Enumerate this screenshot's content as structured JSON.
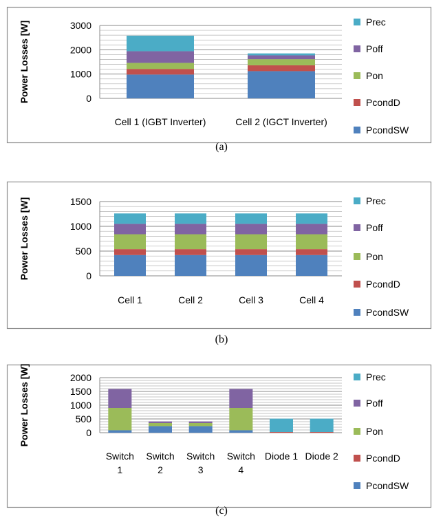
{
  "legend": [
    {
      "name": "Prec",
      "color": "#4BACC6"
    },
    {
      "name": "Poff",
      "color": "#8064A2"
    },
    {
      "name": "Pon",
      "color": "#9BBB59"
    },
    {
      "name": "PcondD",
      "color": "#C0504D"
    },
    {
      "name": "PcondSW",
      "color": "#4F81BD"
    }
  ],
  "chart_data": [
    {
      "type": "bar",
      "stacked": true,
      "caption": "(a)",
      "ylabel": "Power Losses [W]",
      "ylim": [
        0,
        3000
      ],
      "yticks": [
        0,
        1000,
        2000,
        3000
      ],
      "minor_step": 200,
      "categories": [
        [
          "Cell 1 (IGBT Inverter)"
        ],
        [
          "Cell 2 (IGCT Inverter)"
        ]
      ],
      "series": [
        {
          "name": "PcondSW",
          "values": [
            980,
            1120
          ]
        },
        {
          "name": "PcondD",
          "values": [
            230,
            240
          ]
        },
        {
          "name": "Pon",
          "values": [
            250,
            250
          ]
        },
        {
          "name": "Poff",
          "values": [
            480,
            160
          ]
        },
        {
          "name": "Prec",
          "values": [
            640,
            80
          ]
        }
      ],
      "legend_position": "right",
      "grid": true
    },
    {
      "type": "bar",
      "stacked": true,
      "caption": "(b)",
      "ylabel": "Power Losses [W]",
      "ylim": [
        0,
        1500
      ],
      "yticks": [
        0,
        500,
        1000,
        1500
      ],
      "minor_step": 100,
      "categories": [
        [
          "Cell 1"
        ],
        [
          "Cell 2"
        ],
        [
          "Cell 3"
        ],
        [
          "Cell 4"
        ]
      ],
      "series": [
        {
          "name": "PcondSW",
          "values": [
            420,
            420,
            420,
            420
          ]
        },
        {
          "name": "PcondD",
          "values": [
            120,
            120,
            120,
            120
          ]
        },
        {
          "name": "Pon",
          "values": [
            300,
            300,
            300,
            300
          ]
        },
        {
          "name": "Poff",
          "values": [
            210,
            210,
            210,
            210
          ]
        },
        {
          "name": "Prec",
          "values": [
            210,
            210,
            210,
            210
          ]
        }
      ],
      "legend_position": "right",
      "grid": true
    },
    {
      "type": "bar",
      "stacked": true,
      "caption": "(c)",
      "ylabel": "Power Losses [W]",
      "ylim": [
        0,
        2000
      ],
      "yticks": [
        0,
        500,
        1000,
        1500,
        2000
      ],
      "minor_step": 100,
      "categories": [
        [
          "Switch",
          "1"
        ],
        [
          "Switch",
          "2"
        ],
        [
          "Switch",
          "3"
        ],
        [
          "Switch",
          "4"
        ],
        [
          "Diode 1"
        ],
        [
          "Diode 2"
        ]
      ],
      "series": [
        {
          "name": "PcondSW",
          "values": [
            90,
            240,
            240,
            90,
            0,
            0
          ]
        },
        {
          "name": "PcondD",
          "values": [
            0,
            0,
            0,
            0,
            25,
            25
          ]
        },
        {
          "name": "Pon",
          "values": [
            810,
            110,
            110,
            810,
            0,
            0
          ]
        },
        {
          "name": "Poff",
          "values": [
            690,
            60,
            60,
            690,
            0,
            0
          ]
        },
        {
          "name": "Prec",
          "values": [
            0,
            0,
            0,
            0,
            485,
            485
          ]
        }
      ],
      "legend_position": "right",
      "grid": true
    }
  ]
}
